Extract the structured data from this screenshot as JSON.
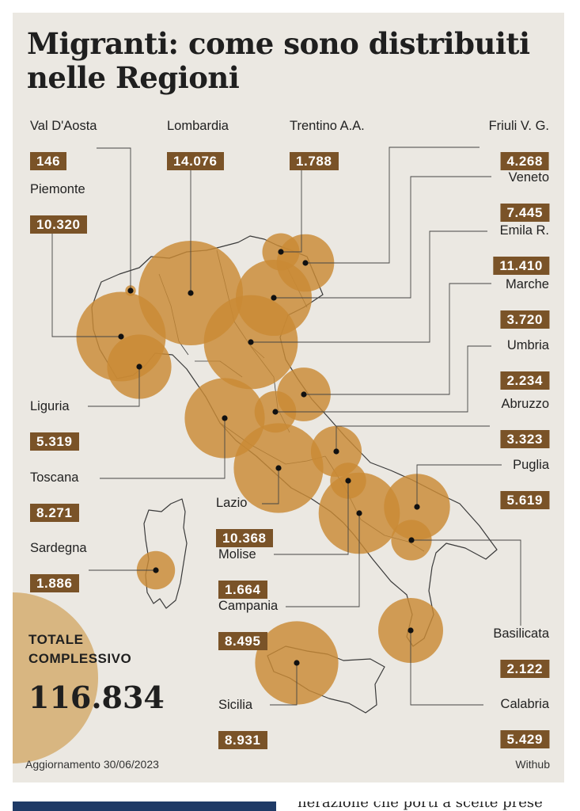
{
  "infographic": {
    "title": "Migranti: come sono distribuiti nelle Regioni",
    "total_label": "TOTALE\nCOMPLESSIVO",
    "total_value": "116.834",
    "updated": "Aggiornamento 30/06/2023",
    "source": "Withub"
  },
  "article": {
    "snippet": "herazione che porti a scelte prese"
  },
  "chart_data": {
    "type": "bubble-map",
    "title": "Migranti: come sono distribuiti nelle Regioni",
    "unit": "migranti",
    "regions": [
      {
        "name": "Val D'Aosta",
        "value": 146,
        "label": "146"
      },
      {
        "name": "Piemonte",
        "value": 10320,
        "label": "10.320"
      },
      {
        "name": "Liguria",
        "value": 5319,
        "label": "5.319"
      },
      {
        "name": "Lombardia",
        "value": 14076,
        "label": "14.076"
      },
      {
        "name": "Trentino A.A.",
        "value": 1788,
        "label": "1.788"
      },
      {
        "name": "Friuli V. G.",
        "value": 4268,
        "label": "4.268"
      },
      {
        "name": "Veneto",
        "value": 7445,
        "label": "7.445"
      },
      {
        "name": "Emila R.",
        "value": 11410,
        "label": "11.410"
      },
      {
        "name": "Toscana",
        "value": 8271,
        "label": "8.271"
      },
      {
        "name": "Marche",
        "value": 3720,
        "label": "3.720"
      },
      {
        "name": "Umbria",
        "value": 2234,
        "label": "2.234"
      },
      {
        "name": "Lazio",
        "value": 10368,
        "label": "10.368"
      },
      {
        "name": "Abruzzo",
        "value": 3323,
        "label": "3.323"
      },
      {
        "name": "Molise",
        "value": 1664,
        "label": "1.664"
      },
      {
        "name": "Campania",
        "value": 8495,
        "label": "8.495"
      },
      {
        "name": "Puglia",
        "value": 5619,
        "label": "5.619"
      },
      {
        "name": "Basilicata",
        "value": 2122,
        "label": "2.122"
      },
      {
        "name": "Calabria",
        "value": 5429,
        "label": "5.429"
      },
      {
        "name": "Sicilia",
        "value": 8931,
        "label": "8.931"
      },
      {
        "name": "Sardegna",
        "value": 1886,
        "label": "1.886"
      }
    ],
    "total": 116834,
    "colors": {
      "bubble": "#c98a35",
      "bubble_overlap": "#a8502c",
      "value_box": "#7a5328",
      "background": "#ebe8e2",
      "total_disc": "#d8b681"
    }
  }
}
